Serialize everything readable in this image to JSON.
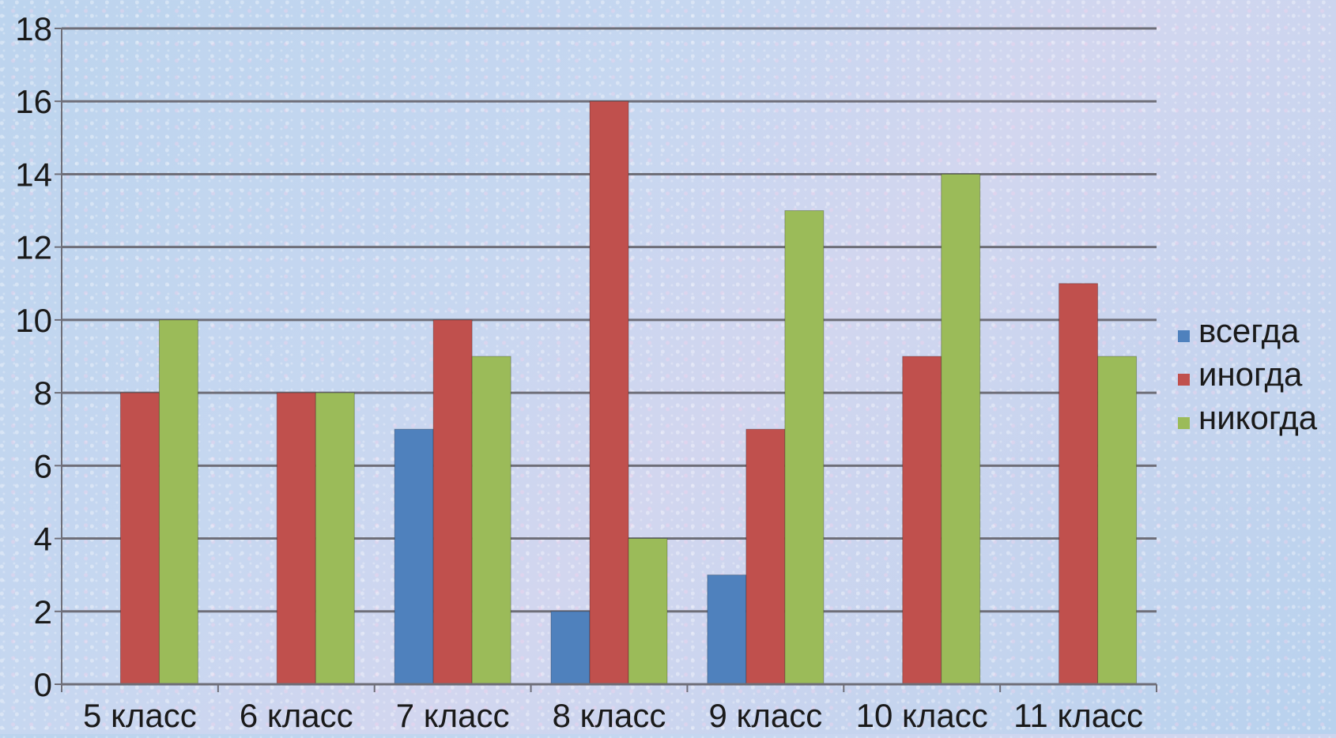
{
  "chart_data": {
    "type": "bar",
    "categories": [
      "5 класс",
      "6 класс",
      "7 класс",
      "8 класс",
      "9 класс",
      "10 класс",
      "11 класс"
    ],
    "series": [
      {
        "name": "всегда",
        "color": "#4F81BD",
        "values": [
          0,
          0,
          7,
          2,
          3,
          0,
          0
        ]
      },
      {
        "name": "иногда",
        "color": "#C0504D",
        "values": [
          8,
          8,
          10,
          16,
          7,
          9,
          11
        ]
      },
      {
        "name": "никогда",
        "color": "#9BBB59",
        "values": [
          10,
          8,
          9,
          4,
          13,
          14,
          9
        ]
      }
    ],
    "ylim": [
      0,
      18
    ],
    "yticks": [
      0,
      2,
      4,
      6,
      8,
      10,
      12,
      14,
      16,
      18
    ],
    "grid": true,
    "legend_position": "right",
    "title": "",
    "xlabel": "",
    "ylabel": ""
  }
}
